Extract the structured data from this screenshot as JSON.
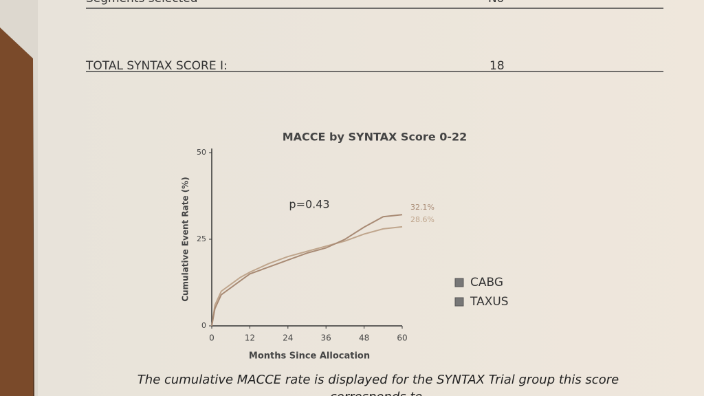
{
  "rows": [
    {
      "label": "Segments selected",
      "value": "No"
    },
    {
      "label": "TOTAL SYNTAX SCORE I:",
      "value": "18"
    }
  ],
  "caption": [
    "The cumulative MACCE rate is displayed for the SYNTAX Trial group this score",
    "corresponds to."
  ],
  "chart_data": {
    "type": "line",
    "title": "MACCE by SYNTAX Score 0-22",
    "x_label": "Months Since Allocation",
    "y_label": "Cumulative Event Rate (%)",
    "annotation": "p=0.43",
    "x": [
      0,
      1,
      3,
      6,
      9,
      12,
      18,
      24,
      30,
      36,
      42,
      48,
      54,
      60
    ],
    "series": [
      {
        "name": "CABG",
        "color": "#bfa58c",
        "values": [
          0,
          6,
          10,
          12,
          14,
          15.5,
          18,
          20,
          21.5,
          23,
          24.5,
          26.5,
          28,
          28.6
        ],
        "value_labels": [
          null,
          null,
          null,
          null,
          null,
          null,
          null,
          null,
          null,
          null,
          null,
          null,
          null,
          "28.6%"
        ]
      },
      {
        "name": "TAXUS",
        "color": "#a88a74",
        "values": [
          0,
          5,
          9,
          11,
          13,
          15,
          17,
          19,
          21,
          22.5,
          25,
          28.5,
          31.5,
          32.1
        ],
        "value_labels": [
          null,
          null,
          null,
          null,
          null,
          null,
          null,
          null,
          null,
          null,
          null,
          null,
          null,
          "32.1%"
        ]
      }
    ],
    "xlim": [
      0,
      60
    ],
    "xticks": [
      0,
      12,
      24,
      36,
      48,
      60
    ],
    "ylim": [
      0,
      50
    ],
    "yticks": [
      0,
      25,
      50
    ],
    "grid": false,
    "legend": "right"
  }
}
